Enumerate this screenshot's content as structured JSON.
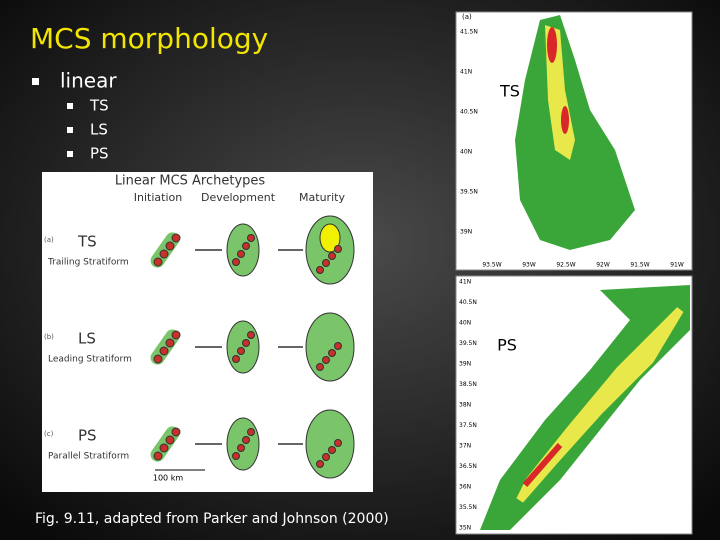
{
  "slide": {
    "title": "MCS morphology",
    "bullets": [
      {
        "text": "linear",
        "sub": [
          "TS",
          "LS",
          "PS"
        ]
      }
    ]
  },
  "figure": {
    "title": "Linear MCS Archetypes",
    "stages": [
      "Initiation",
      "Development",
      "Maturity"
    ],
    "rows": [
      {
        "tag": "(a)",
        "abbr": "TS",
        "name": "Trailing Stratiform"
      },
      {
        "tag": "(b)",
        "abbr": "LS",
        "name": "Leading Stratiform"
      },
      {
        "tag": "(c)",
        "abbr": "PS",
        "name": "Parallel Stratiform"
      }
    ],
    "scale": "100 km",
    "caption": "Fig. 9.11, adapted from Parker and Johnson (2000)"
  },
  "radar": [
    {
      "panel": "(a)",
      "label": "TS",
      "lat": [
        "41.5N",
        "41N",
        "40.5N",
        "40N",
        "39.5N",
        "39N"
      ],
      "lon": [
        "93.5W",
        "93W",
        "92.5W",
        "92W",
        "91.5W",
        "91W"
      ]
    },
    {
      "label": "PS",
      "lat": [
        "41N",
        "40.5N",
        "40N",
        "39.5N",
        "39N",
        "38.5N",
        "38N",
        "37.5N",
        "37N",
        "36.5N",
        "36N",
        "35.5N",
        "35N"
      ]
    }
  ]
}
